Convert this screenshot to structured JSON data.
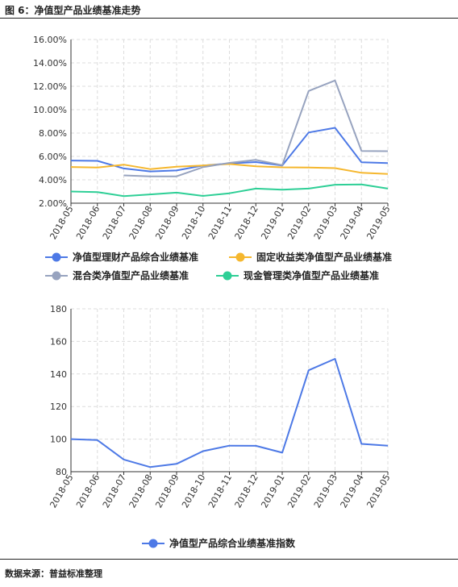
{
  "figure": {
    "title": "图 6：净值型产品业绩基准走势",
    "source": "数据来源：普益标准整理"
  },
  "chart_data": [
    {
      "type": "line",
      "categories": [
        "2018-05",
        "2018-06",
        "2018-07",
        "2018-08",
        "2018-09",
        "2018-10",
        "2018-11",
        "2018-12",
        "2019-01",
        "2019-02",
        "2019-03",
        "2019-04",
        "2019-05"
      ],
      "ylim": [
        2,
        16
      ],
      "yticks": [
        "2.00%",
        "4.00%",
        "6.00%",
        "8.00%",
        "10.00%",
        "12.00%",
        "14.00%",
        "16.00%"
      ],
      "grid": true,
      "legend": "bottom",
      "series": [
        {
          "name": "净值型理财产品综合业绩基准",
          "color": "#4d79e6",
          "values": [
            5.65,
            5.62,
            4.97,
            4.72,
            4.8,
            5.22,
            5.4,
            5.52,
            5.22,
            8.05,
            8.45,
            5.5,
            5.43
          ]
        },
        {
          "name": "固定收益类净值型产品业绩基准",
          "color": "#f5b72e",
          "values": [
            5.1,
            5.05,
            5.3,
            4.92,
            5.12,
            5.22,
            5.35,
            5.15,
            5.07,
            5.05,
            5.0,
            4.6,
            4.5
          ]
        },
        {
          "name": "混合类净值型产品业绩基准",
          "color": "#97a3bf",
          "values": [
            null,
            null,
            4.38,
            4.3,
            4.3,
            5.08,
            5.45,
            5.7,
            5.25,
            11.6,
            12.5,
            6.47,
            6.45
          ]
        },
        {
          "name": "现金管理类净值型产品业绩基准",
          "color": "#2ecf96",
          "values": [
            3.0,
            2.95,
            2.6,
            2.75,
            2.9,
            2.62,
            2.85,
            3.25,
            3.15,
            3.25,
            3.58,
            3.6,
            3.25
          ]
        }
      ]
    },
    {
      "type": "line",
      "categories": [
        "2018-05",
        "2018-06",
        "2018-07",
        "2018-08",
        "2018-09",
        "2018-10",
        "2018-11",
        "2018-12",
        "2019-01",
        "2019-02",
        "2019-03",
        "2019-04",
        "2019-05"
      ],
      "ylim": [
        80,
        180
      ],
      "yticks": [
        "80",
        "100",
        "120",
        "140",
        "160",
        "180"
      ],
      "grid": true,
      "legend": "bottom",
      "series": [
        {
          "name": "净值型产品综合业绩基准指数",
          "color": "#4d79e6",
          "values": [
            100.0,
            99.4,
            87.5,
            82.8,
            84.8,
            92.6,
            96.0,
            95.9,
            91.7,
            142.3,
            149.3,
            97.1,
            96.0
          ]
        }
      ]
    }
  ]
}
